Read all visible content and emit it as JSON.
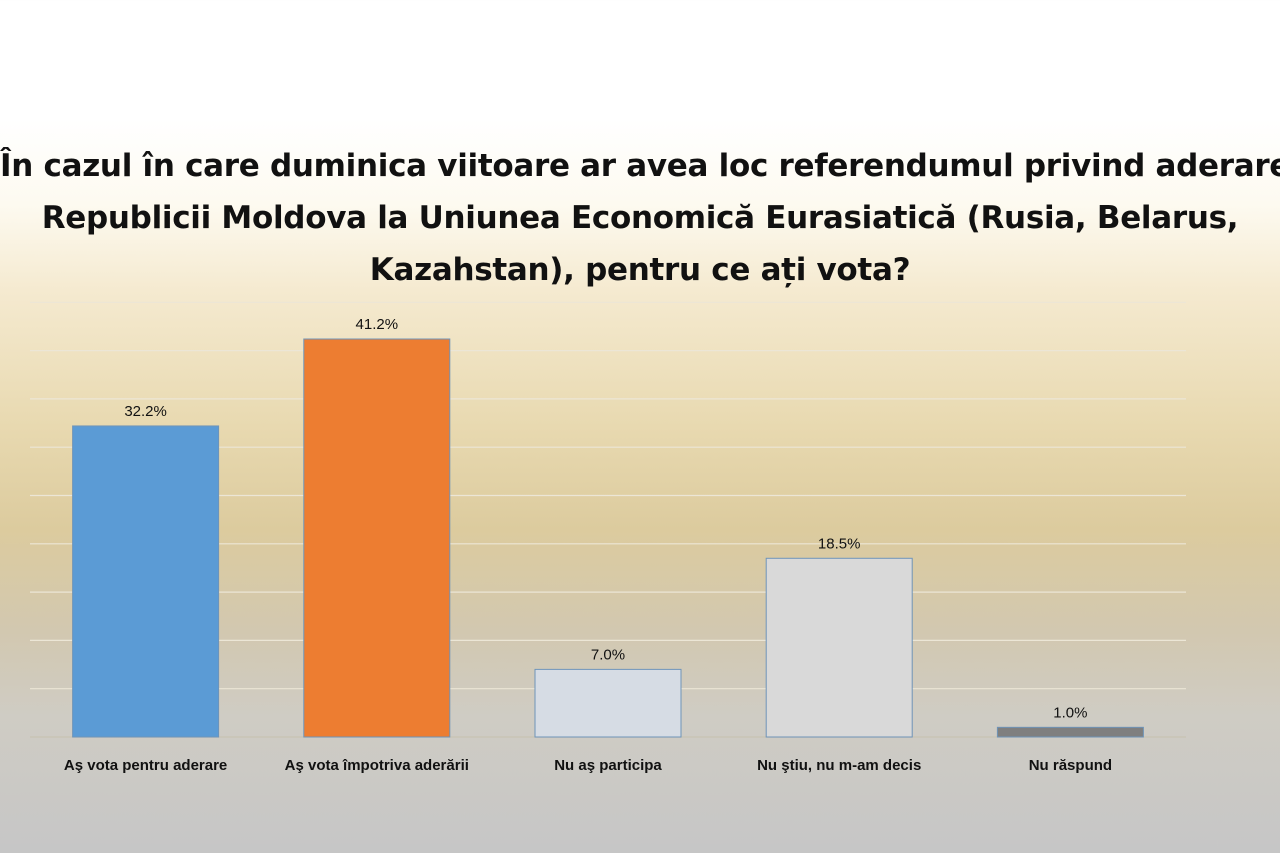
{
  "title_lines": [
    "În cazul în care duminica viitoare ar avea loc referendumul privind aderarea",
    "Republicii Moldova la Uniunea Economică Eurasiatică (Rusia, Belarus,",
    "Kazahstan), pentru ce ați vota?"
  ],
  "chart_data": {
    "type": "bar",
    "title": "În cazul în care duminica viitoare ar avea loc referendumul privind aderarea Republicii Moldova la Uniunea Economică Eurasiatică (Rusia, Belarus, Kazahstan), pentru ce ați vota?",
    "categories": [
      "Aş vota pentru aderare",
      "Aş vota împotriva aderării",
      "Nu aş participa",
      "Nu ştiu, nu m-am decis",
      "Nu răspund"
    ],
    "values": [
      32.2,
      41.2,
      7.0,
      18.5,
      1.0
    ],
    "data_labels": [
      "32.2%",
      "41.2%",
      "7.0%",
      "18.5%",
      "1.0%"
    ],
    "colors": [
      "#5b9bd5",
      "#ed7d31",
      "#d6dce4",
      "#d9d9d9",
      "#7f7f7f"
    ],
    "ylim": [
      0,
      45
    ],
    "grid": true,
    "xlabel": "",
    "ylabel": ""
  }
}
